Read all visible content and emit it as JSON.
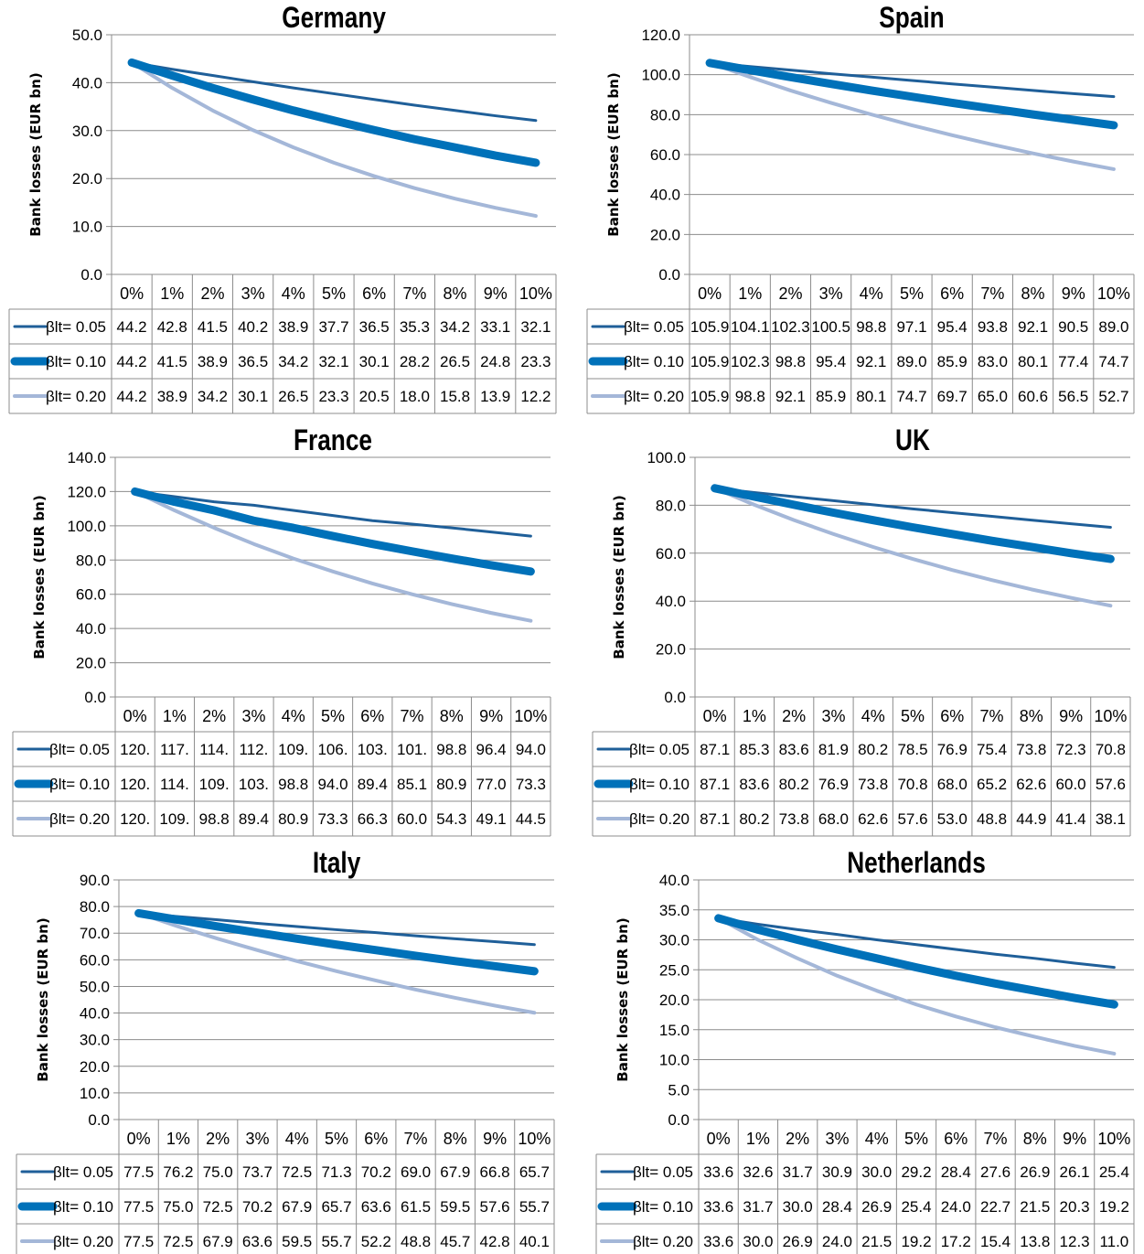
{
  "page": {
    "y_axis_label": "Bank losses  (EUR bn)"
  },
  "chart_data": [
    {
      "type": "line",
      "title": "Germany",
      "ylabel": "Bank losses  (EUR bn)",
      "ylim": [
        0,
        50
      ],
      "yticks": [
        "0.0",
        "10.0",
        "20.0",
        "30.0",
        "40.0",
        "50.0"
      ],
      "categories": [
        "0%",
        "1%",
        "2%",
        "3%",
        "4%",
        "5%",
        "6%",
        "7%",
        "8%",
        "9%",
        "10%"
      ],
      "grid": true,
      "legend": "data-table",
      "series": [
        {
          "name": "βlt= 0.05",
          "color": "#1f5f99",
          "values": [
            44.2,
            42.8,
            41.5,
            40.2,
            38.9,
            37.7,
            36.5,
            35.3,
            34.2,
            33.1,
            32.1
          ],
          "labels": [
            "44.2",
            "42.8",
            "41.5",
            "40.2",
            "38.9",
            "37.7",
            "36.5",
            "35.3",
            "34.2",
            "33.1",
            "32.1"
          ]
        },
        {
          "name": "βlt= 0.10",
          "color": "#0071b9",
          "values": [
            44.2,
            41.5,
            38.9,
            36.5,
            34.2,
            32.1,
            30.1,
            28.2,
            26.5,
            24.8,
            23.3
          ],
          "labels": [
            "44.2",
            "41.5",
            "38.9",
            "36.5",
            "34.2",
            "32.1",
            "30.1",
            "28.2",
            "26.5",
            "24.8",
            "23.3"
          ]
        },
        {
          "name": "βlt= 0.20",
          "color": "#a4b7d8",
          "values": [
            44.2,
            38.9,
            34.2,
            30.1,
            26.5,
            23.3,
            20.5,
            18.0,
            15.8,
            13.9,
            12.2
          ],
          "labels": [
            "44.2",
            "38.9",
            "34.2",
            "30.1",
            "26.5",
            "23.3",
            "20.5",
            "18.0",
            "15.8",
            "13.9",
            "12.2"
          ]
        }
      ]
    },
    {
      "type": "line",
      "title": "Spain",
      "ylabel": "Bank losses  (EUR bn)",
      "ylim": [
        0,
        120
      ],
      "yticks": [
        "0.0",
        "20.0",
        "40.0",
        "60.0",
        "80.0",
        "100.0",
        "120.0"
      ],
      "categories": [
        "0%",
        "1%",
        "2%",
        "3%",
        "4%",
        "5%",
        "6%",
        "7%",
        "8%",
        "9%",
        "10%"
      ],
      "grid": true,
      "legend": "data-table",
      "series": [
        {
          "name": "βlt= 0.05",
          "color": "#1f5f99",
          "values": [
            105.9,
            104.1,
            102.3,
            100.5,
            98.8,
            97.1,
            95.4,
            93.8,
            92.1,
            90.5,
            89.0
          ],
          "labels": [
            "105.9",
            "104.1",
            "102.3",
            "100.5",
            "98.8",
            "97.1",
            "95.4",
            "93.8",
            "92.1",
            "90.5",
            "89.0"
          ]
        },
        {
          "name": "βlt= 0.10",
          "color": "#0071b9",
          "values": [
            105.9,
            102.3,
            98.8,
            95.4,
            92.1,
            89.0,
            85.9,
            83.0,
            80.1,
            77.4,
            74.7
          ],
          "labels": [
            "105.9",
            "102.3",
            "98.8",
            "95.4",
            "92.1",
            "89.0",
            "85.9",
            "83.0",
            "80.1",
            "77.4",
            "74.7"
          ]
        },
        {
          "name": "βlt= 0.20",
          "color": "#a4b7d8",
          "values": [
            105.9,
            98.8,
            92.1,
            85.9,
            80.1,
            74.7,
            69.7,
            65.0,
            60.6,
            56.5,
            52.7
          ],
          "labels": [
            "105.9",
            "98.8",
            "92.1",
            "85.9",
            "80.1",
            "74.7",
            "69.7",
            "65.0",
            "60.6",
            "56.5",
            "52.7"
          ]
        }
      ]
    },
    {
      "type": "line",
      "title": "France",
      "ylabel": "Bank losses  (EUR bn)",
      "ylim": [
        0,
        140
      ],
      "yticks": [
        "0.0",
        "20.0",
        "40.0",
        "60.0",
        "80.0",
        "100.0",
        "120.0",
        "140.0"
      ],
      "categories": [
        "0%",
        "1%",
        "2%",
        "3%",
        "4%",
        "5%",
        "6%",
        "7%",
        "8%",
        "9%",
        "10%"
      ],
      "grid": true,
      "legend": "data-table",
      "series": [
        {
          "name": "βlt= 0.05",
          "color": "#1f5f99",
          "values": [
            120,
            117,
            114,
            112,
            109,
            106,
            103,
            101,
            98.8,
            96.4,
            94.0
          ],
          "labels": [
            "120.",
            "117.",
            "114.",
            "112.",
            "109.",
            "106.",
            "103.",
            "101.",
            "98.8",
            "96.4",
            "94.0"
          ]
        },
        {
          "name": "βlt= 0.10",
          "color": "#0071b9",
          "values": [
            120,
            114,
            109,
            103,
            98.8,
            94.0,
            89.4,
            85.1,
            80.9,
            77.0,
            73.3
          ],
          "labels": [
            "120.",
            "114.",
            "109.",
            "103.",
            "98.8",
            "94.0",
            "89.4",
            "85.1",
            "80.9",
            "77.0",
            "73.3"
          ]
        },
        {
          "name": "βlt= 0.20",
          "color": "#a4b7d8",
          "values": [
            120,
            109,
            98.8,
            89.4,
            80.9,
            73.3,
            66.3,
            60.0,
            54.3,
            49.1,
            44.5
          ],
          "labels": [
            "120.",
            "109.",
            "98.8",
            "89.4",
            "80.9",
            "73.3",
            "66.3",
            "60.0",
            "54.3",
            "49.1",
            "44.5"
          ]
        }
      ]
    },
    {
      "type": "line",
      "title": "UK",
      "ylabel": "Bank losses  (EUR bn)",
      "ylim": [
        0,
        100
      ],
      "yticks": [
        "0.0",
        "20.0",
        "40.0",
        "60.0",
        "80.0",
        "100.0"
      ],
      "categories": [
        "0%",
        "1%",
        "2%",
        "3%",
        "4%",
        "5%",
        "6%",
        "7%",
        "8%",
        "9%",
        "10%"
      ],
      "grid": true,
      "legend": "data-table",
      "series": [
        {
          "name": "βlt= 0.05",
          "color": "#1f5f99",
          "values": [
            87.1,
            85.3,
            83.6,
            81.9,
            80.2,
            78.5,
            76.9,
            75.4,
            73.8,
            72.3,
            70.8
          ],
          "labels": [
            "87.1",
            "85.3",
            "83.6",
            "81.9",
            "80.2",
            "78.5",
            "76.9",
            "75.4",
            "73.8",
            "72.3",
            "70.8"
          ]
        },
        {
          "name": "βlt= 0.10",
          "color": "#0071b9",
          "values": [
            87.1,
            83.6,
            80.2,
            76.9,
            73.8,
            70.8,
            68.0,
            65.2,
            62.6,
            60.0,
            57.6
          ],
          "labels": [
            "87.1",
            "83.6",
            "80.2",
            "76.9",
            "73.8",
            "70.8",
            "68.0",
            "65.2",
            "62.6",
            "60.0",
            "57.6"
          ]
        },
        {
          "name": "βlt= 0.20",
          "color": "#a4b7d8",
          "values": [
            87.1,
            80.2,
            73.8,
            68.0,
            62.6,
            57.6,
            53.0,
            48.8,
            44.9,
            41.4,
            38.1
          ],
          "labels": [
            "87.1",
            "80.2",
            "73.8",
            "68.0",
            "62.6",
            "57.6",
            "53.0",
            "48.8",
            "44.9",
            "41.4",
            "38.1"
          ]
        }
      ]
    },
    {
      "type": "line",
      "title": "Italy",
      "ylabel": "Bank losses  (EUR bn)",
      "ylim": [
        0,
        90
      ],
      "yticks": [
        "0.0",
        "10.0",
        "20.0",
        "30.0",
        "40.0",
        "50.0",
        "60.0",
        "70.0",
        "80.0",
        "90.0"
      ],
      "categories": [
        "0%",
        "1%",
        "2%",
        "3%",
        "4%",
        "5%",
        "6%",
        "7%",
        "8%",
        "9%",
        "10%"
      ],
      "grid": true,
      "legend": "data-table",
      "series": [
        {
          "name": "βlt= 0.05",
          "color": "#1f5f99",
          "values": [
            77.5,
            76.2,
            75.0,
            73.7,
            72.5,
            71.3,
            70.2,
            69.0,
            67.9,
            66.8,
            65.7
          ],
          "labels": [
            "77.5",
            "76.2",
            "75.0",
            "73.7",
            "72.5",
            "71.3",
            "70.2",
            "69.0",
            "67.9",
            "66.8",
            "65.7"
          ]
        },
        {
          "name": "βlt= 0.10",
          "color": "#0071b9",
          "values": [
            77.5,
            75.0,
            72.5,
            70.2,
            67.9,
            65.7,
            63.6,
            61.5,
            59.5,
            57.6,
            55.7
          ],
          "labels": [
            "77.5",
            "75.0",
            "72.5",
            "70.2",
            "67.9",
            "65.7",
            "63.6",
            "61.5",
            "59.5",
            "57.6",
            "55.7"
          ]
        },
        {
          "name": "βlt= 0.20",
          "color": "#a4b7d8",
          "values": [
            77.5,
            72.5,
            67.9,
            63.6,
            59.5,
            55.7,
            52.2,
            48.8,
            45.7,
            42.8,
            40.1
          ],
          "labels": [
            "77.5",
            "72.5",
            "67.9",
            "63.6",
            "59.5",
            "55.7",
            "52.2",
            "48.8",
            "45.7",
            "42.8",
            "40.1"
          ]
        }
      ]
    },
    {
      "type": "line",
      "title": "Netherlands",
      "ylabel": "Bank losses  (EUR bn)",
      "ylim": [
        0,
        40
      ],
      "yticks": [
        "0.0",
        "5.0",
        "10.0",
        "15.0",
        "20.0",
        "25.0",
        "30.0",
        "35.0",
        "40.0"
      ],
      "categories": [
        "0%",
        "1%",
        "2%",
        "3%",
        "4%",
        "5%",
        "6%",
        "7%",
        "8%",
        "9%",
        "10%"
      ],
      "grid": true,
      "legend": "data-table",
      "series": [
        {
          "name": "βlt= 0.05",
          "color": "#1f5f99",
          "values": [
            33.6,
            32.6,
            31.7,
            30.9,
            30.0,
            29.2,
            28.4,
            27.6,
            26.9,
            26.1,
            25.4
          ],
          "labels": [
            "33.6",
            "32.6",
            "31.7",
            "30.9",
            "30.0",
            "29.2",
            "28.4",
            "27.6",
            "26.9",
            "26.1",
            "25.4"
          ]
        },
        {
          "name": "βlt= 0.10",
          "color": "#0071b9",
          "values": [
            33.6,
            31.7,
            30.0,
            28.4,
            26.9,
            25.4,
            24.0,
            22.7,
            21.5,
            20.3,
            19.2
          ],
          "labels": [
            "33.6",
            "31.7",
            "30.0",
            "28.4",
            "26.9",
            "25.4",
            "24.0",
            "22.7",
            "21.5",
            "20.3",
            "19.2"
          ]
        },
        {
          "name": "βlt= 0.20",
          "color": "#a4b7d8",
          "values": [
            33.6,
            30.0,
            26.9,
            24.0,
            21.5,
            19.2,
            17.2,
            15.4,
            13.8,
            12.3,
            11.0
          ],
          "labels": [
            "33.6",
            "30.0",
            "26.9",
            "24.0",
            "21.5",
            "19.2",
            "17.2",
            "15.4",
            "13.8",
            "12.3",
            "11.0"
          ]
        }
      ]
    }
  ]
}
